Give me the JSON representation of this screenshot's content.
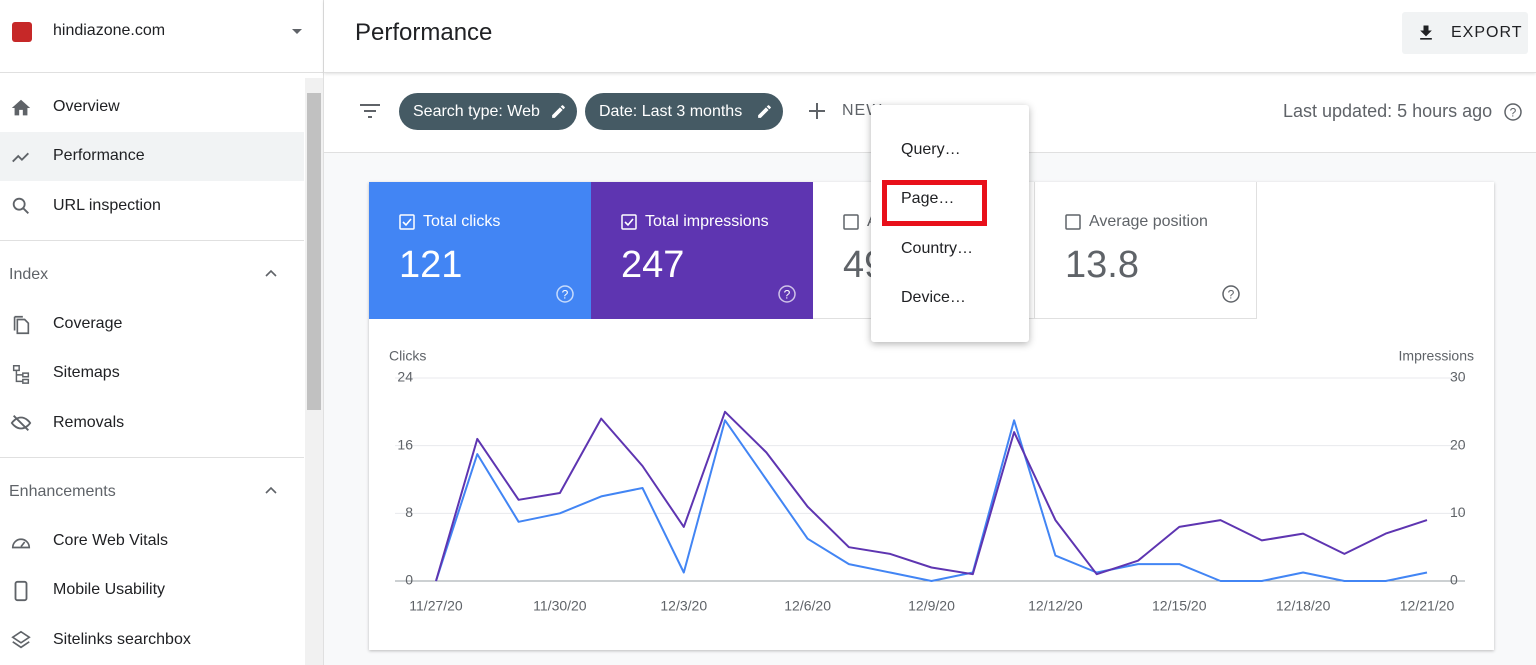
{
  "sidebar": {
    "site": "hindiazone.com",
    "nav": [
      "Overview",
      "Performance",
      "URL inspection"
    ],
    "sections": [
      {
        "title": "Index",
        "items": [
          "Coverage",
          "Sitemaps",
          "Removals"
        ]
      },
      {
        "title": "Enhancements",
        "items": [
          "Core Web Vitals",
          "Mobile Usability",
          "Sitelinks searchbox"
        ]
      }
    ]
  },
  "header": {
    "title": "Performance",
    "export": "EXPORT"
  },
  "filters": {
    "chips": [
      "Search type: Web",
      "Date: Last 3 months"
    ],
    "new": "NEW",
    "last_updated": "Last updated: 5 hours ago"
  },
  "menu": [
    "Query…",
    "Page…",
    "Country…",
    "Device…"
  ],
  "metrics": [
    {
      "label": "Total clicks",
      "value": "121"
    },
    {
      "label": "Total impressions",
      "value": "247"
    },
    {
      "label": "A",
      "value": "49"
    },
    {
      "label": "Average position",
      "value": "13.8"
    }
  ],
  "chart_data": {
    "type": "line",
    "y_label": "Clicks",
    "y2_label": "Impressions",
    "categories": [
      "11/27/20",
      null,
      null,
      "11/30/20",
      null,
      null,
      "12/3/20",
      null,
      null,
      "12/6/20",
      null,
      null,
      "12/9/20",
      null,
      null,
      "12/12/20",
      null,
      null,
      "12/15/20",
      null,
      null,
      "12/18/20",
      null,
      null,
      "12/21/20"
    ],
    "series": [
      {
        "name": "Clicks",
        "color": "#4285f4",
        "values": [
          0,
          15,
          7,
          8,
          10,
          11,
          1,
          19,
          12,
          5,
          2,
          1,
          0,
          1,
          19,
          3,
          1,
          2,
          2,
          0,
          0,
          1,
          0,
          0,
          1
        ]
      },
      {
        "name": "Impressions",
        "color": "#5e35b1",
        "axis": "y2",
        "values": [
          0,
          21,
          12,
          13,
          24,
          17,
          8,
          25,
          19,
          11,
          5,
          4,
          2,
          1,
          22,
          9,
          1,
          3,
          8,
          9,
          6,
          7,
          4,
          7,
          9
        ]
      }
    ],
    "ylim": [
      0,
      24
    ],
    "yticks": [
      0,
      8,
      16,
      24
    ],
    "y2lim": [
      0,
      30
    ],
    "y2ticks": [
      0,
      10,
      20,
      30
    ],
    "grid": true
  }
}
